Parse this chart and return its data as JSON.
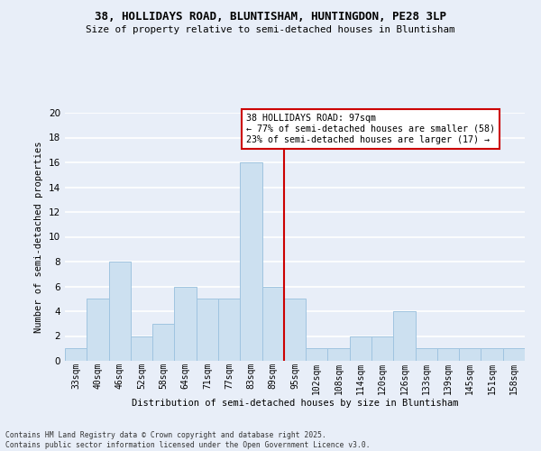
{
  "title1": "38, HOLLIDAYS ROAD, BLUNTISHAM, HUNTINGDON, PE28 3LP",
  "title2": "Size of property relative to semi-detached houses in Bluntisham",
  "xlabel": "Distribution of semi-detached houses by size in Bluntisham",
  "ylabel": "Number of semi-detached properties",
  "categories": [
    "33sqm",
    "40sqm",
    "46sqm",
    "52sqm",
    "58sqm",
    "64sqm",
    "71sqm",
    "77sqm",
    "83sqm",
    "89sqm",
    "95sqm",
    "102sqm",
    "108sqm",
    "114sqm",
    "120sqm",
    "126sqm",
    "133sqm",
    "139sqm",
    "145sqm",
    "151sqm",
    "158sqm"
  ],
  "values": [
    1,
    5,
    8,
    2,
    3,
    6,
    5,
    5,
    16,
    6,
    5,
    1,
    1,
    2,
    2,
    4,
    1,
    1,
    1,
    1,
    1
  ],
  "bar_color": "#cce0f0",
  "bar_edge_color": "#a0c4e0",
  "vline_x": 9.5,
  "vline_color": "#cc0000",
  "annotation_title": "38 HOLLIDAYS ROAD: 97sqm",
  "annotation_line1": "← 77% of semi-detached houses are smaller (58)",
  "annotation_line2": "23% of semi-detached houses are larger (17) →",
  "annotation_box_color": "#cc0000",
  "ylim": [
    0,
    20
  ],
  "yticks": [
    0,
    2,
    4,
    6,
    8,
    10,
    12,
    14,
    16,
    18,
    20
  ],
  "footer": "Contains HM Land Registry data © Crown copyright and database right 2025.\nContains public sector information licensed under the Open Government Licence v3.0.",
  "bg_color": "#e8eef8",
  "grid_color": "#ffffff"
}
